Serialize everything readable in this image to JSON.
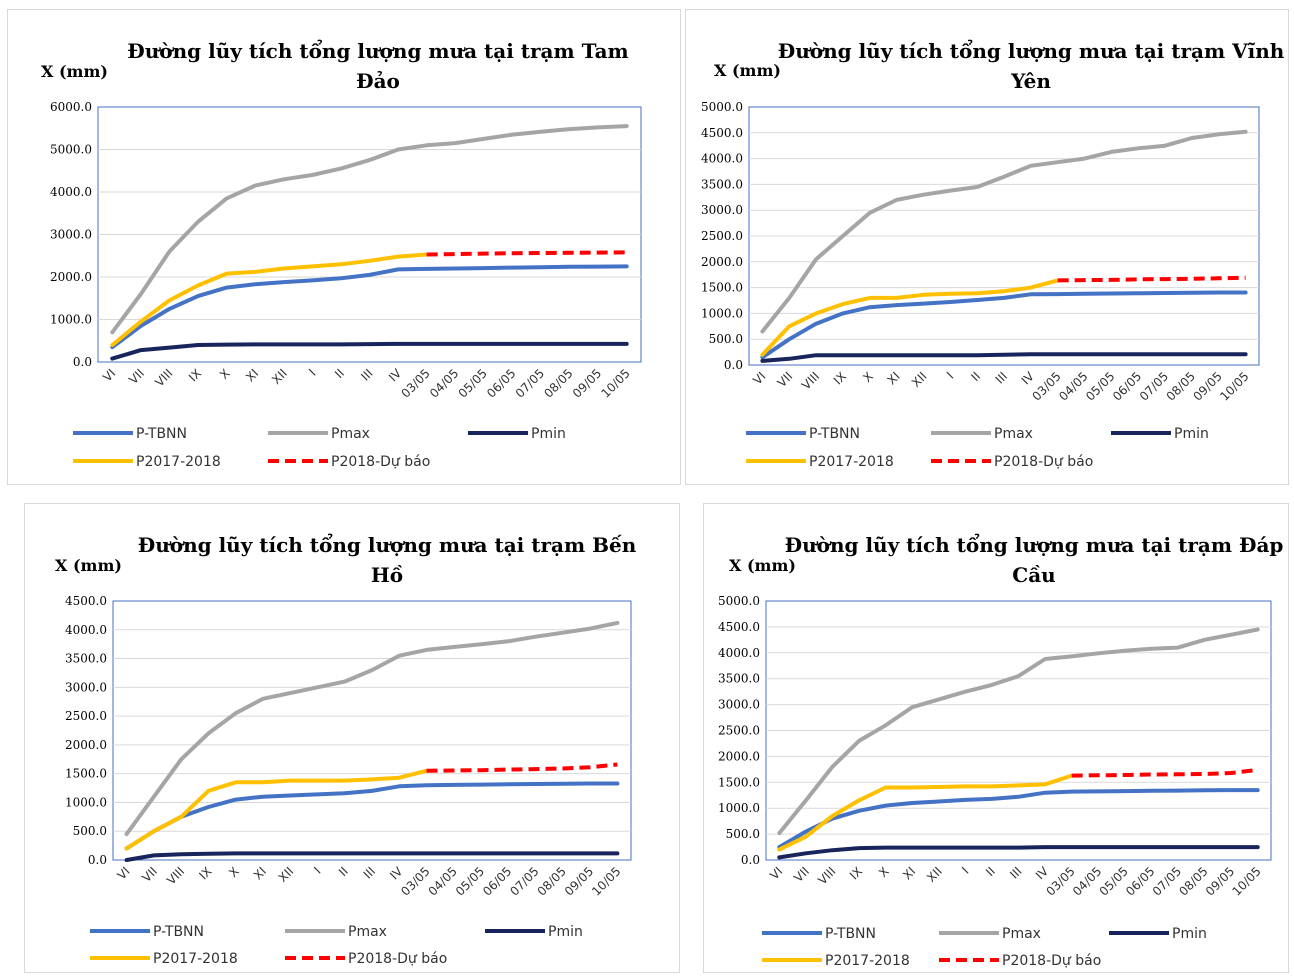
{
  "series_styles": {
    "P-TBNN": "#4472c4",
    "Pmax": "#a5a5a5",
    "Pmin": "#17255c",
    "P2017-2018": "#ffc000",
    "P2018-Dự báo": "#ff0000"
  },
  "chart_data": [
    {
      "type": "line",
      "title": "Đường lũy tích tổng lượng mưa tại trạm Tam Đảo",
      "title_lines": [
        "Đường lũy tích tổng lượng mưa tại trạm Tam",
        "Đảo"
      ],
      "ylabel": "X (mm)",
      "ylim": [
        0,
        6000
      ],
      "yticks": [
        "0.0",
        "1000.0",
        "2000.0",
        "3000.0",
        "4000.0",
        "5000.0",
        "6000.0"
      ],
      "categories": [
        "VI",
        "VII",
        "VIII",
        "IX",
        "X",
        "XI",
        "XII",
        "I",
        "II",
        "III",
        "IV",
        "03/05",
        "04/05",
        "05/05",
        "06/05",
        "07/05",
        "08/05",
        "09/05",
        "10/05"
      ],
      "series": [
        {
          "name": "P-TBNN",
          "x": [
            0,
            1,
            2,
            3,
            4,
            5,
            6,
            7,
            8,
            9,
            10,
            11,
            12,
            13,
            14,
            15,
            16,
            17,
            18
          ],
          "values": [
            350,
            850,
            1250,
            1550,
            1750,
            1830,
            1880,
            1920,
            1970,
            2050,
            2180,
            2190,
            2200,
            2210,
            2220,
            2230,
            2240,
            2245,
            2250
          ]
        },
        {
          "name": "Pmax",
          "x": [
            0,
            1,
            2,
            3,
            4,
            5,
            6,
            7,
            8,
            9,
            10,
            11,
            12,
            13,
            14,
            15,
            16,
            17,
            18
          ],
          "values": [
            700,
            1600,
            2600,
            3300,
            3850,
            4150,
            4300,
            4400,
            4550,
            4750,
            5000,
            5100,
            5150,
            5250,
            5350,
            5420,
            5480,
            5520,
            5550
          ]
        },
        {
          "name": "Pmin",
          "x": [
            0,
            1,
            2,
            3,
            4,
            5,
            6,
            7,
            8,
            9,
            10,
            11,
            12,
            13,
            14,
            15,
            16,
            17,
            18
          ],
          "values": [
            80,
            280,
            340,
            400,
            410,
            415,
            415,
            415,
            415,
            420,
            425,
            425,
            425,
            425,
            425,
            425,
            425,
            425,
            425
          ]
        },
        {
          "name": "P2017-2018",
          "x": [
            0,
            1,
            2,
            3,
            4,
            5,
            6,
            7,
            8,
            9,
            10,
            11
          ],
          "values": [
            400,
            950,
            1450,
            1800,
            2080,
            2120,
            2200,
            2250,
            2300,
            2380,
            2480,
            2530
          ]
        },
        {
          "name": "P2018-Dự báo",
          "dashed": true,
          "x": [
            11,
            12,
            13,
            14,
            15,
            16,
            17,
            18
          ],
          "values": [
            2530,
            2540,
            2550,
            2560,
            2565,
            2570,
            2575,
            2580
          ]
        }
      ],
      "legend": [
        "P-TBNN",
        "Pmax",
        "Pmin",
        "P2017-2018",
        "P2018-Dự báo"
      ]
    },
    {
      "type": "line",
      "title": "Đường lũy tích tổng lượng mưa tại trạm Vĩnh Yên",
      "title_lines": [
        "Đường lũy tích tổng lượng mưa tại trạm Vĩnh",
        "Yên"
      ],
      "ylabel": "X (mm)",
      "ylim": [
        0,
        5000
      ],
      "yticks": [
        "0.0",
        "500.0",
        "1000.0",
        "1500.0",
        "2000.0",
        "2500.0",
        "3000.0",
        "3500.0",
        "4000.0",
        "4500.0",
        "5000.0"
      ],
      "categories": [
        "VI",
        "VII",
        "VIII",
        "IX",
        "X",
        "XI",
        "XII",
        "I",
        "II",
        "III",
        "IV",
        "03/05",
        "04/05",
        "05/05",
        "06/05",
        "07/05",
        "08/05",
        "09/05",
        "10/05"
      ],
      "series": [
        {
          "name": "P-TBNN",
          "x": [
            0,
            1,
            2,
            3,
            4,
            5,
            6,
            7,
            8,
            9,
            10,
            11,
            12,
            13,
            14,
            15,
            16,
            17,
            18
          ],
          "values": [
            150,
            500,
            800,
            1000,
            1120,
            1160,
            1190,
            1220,
            1260,
            1300,
            1370,
            1375,
            1380,
            1385,
            1390,
            1395,
            1400,
            1405,
            1405
          ]
        },
        {
          "name": "Pmax",
          "x": [
            0,
            1,
            2,
            3,
            4,
            5,
            6,
            7,
            8,
            9,
            10,
            11,
            12,
            13,
            14,
            15,
            16,
            17,
            18
          ],
          "values": [
            650,
            1300,
            2050,
            2500,
            2950,
            3200,
            3300,
            3380,
            3450,
            3650,
            3860,
            3930,
            4000,
            4130,
            4200,
            4250,
            4400,
            4470,
            4520
          ]
        },
        {
          "name": "Pmin",
          "x": [
            0,
            1,
            2,
            3,
            4,
            5,
            6,
            7,
            8,
            9,
            10,
            11,
            12,
            13,
            14,
            15,
            16,
            17,
            18
          ],
          "values": [
            80,
            120,
            190,
            190,
            190,
            190,
            190,
            190,
            190,
            200,
            210,
            210,
            210,
            210,
            210,
            210,
            210,
            210,
            210
          ]
        },
        {
          "name": "P2017-2018",
          "x": [
            0,
            1,
            2,
            3,
            4,
            5,
            6,
            7,
            8,
            9,
            10,
            11
          ],
          "values": [
            200,
            750,
            1000,
            1180,
            1300,
            1300,
            1360,
            1380,
            1390,
            1430,
            1500,
            1640
          ]
        },
        {
          "name": "P2018-Dự báo",
          "dashed": true,
          "x": [
            11,
            12,
            13,
            14,
            15,
            16,
            17,
            18
          ],
          "values": [
            1640,
            1645,
            1650,
            1660,
            1665,
            1670,
            1680,
            1690
          ]
        }
      ],
      "legend": [
        "P-TBNN",
        "Pmax",
        "Pmin",
        "P2017-2018",
        "P2018-Dự báo"
      ]
    },
    {
      "type": "line",
      "title": "Đường lũy tích tổng lượng mưa tại trạm Bến Hồ",
      "title_lines": [
        "Đường lũy tích tổng lượng mưa tại trạm Bến",
        "Hồ"
      ],
      "ylabel": "X (mm)",
      "ylim": [
        0,
        4500
      ],
      "yticks": [
        "0.0",
        "500.0",
        "1000.0",
        "1500.0",
        "2000.0",
        "2500.0",
        "3000.0",
        "3500.0",
        "4000.0",
        "4500.0"
      ],
      "categories": [
        "VI",
        "VII",
        "VIII",
        "IX",
        "X",
        "XI",
        "XII",
        "I",
        "II",
        "III",
        "IV",
        "03/05",
        "04/05",
        "05/05",
        "06/05",
        "07/05",
        "08/05",
        "09/05",
        "10/05"
      ],
      "series": [
        {
          "name": "P-TBNN",
          "x": [
            0,
            1,
            2,
            3,
            4,
            5,
            6,
            7,
            8,
            9,
            10,
            11,
            12,
            13,
            14,
            15,
            16,
            17,
            18
          ],
          "values": [
            200,
            500,
            750,
            920,
            1050,
            1100,
            1120,
            1140,
            1160,
            1200,
            1280,
            1300,
            1305,
            1310,
            1315,
            1320,
            1325,
            1330,
            1330
          ]
        },
        {
          "name": "Pmax",
          "x": [
            0,
            1,
            2,
            3,
            4,
            5,
            6,
            7,
            8,
            9,
            10,
            11,
            12,
            13,
            14,
            15,
            16,
            17,
            18
          ],
          "values": [
            450,
            1100,
            1750,
            2200,
            2550,
            2800,
            2900,
            3000,
            3100,
            3300,
            3550,
            3650,
            3700,
            3750,
            3800,
            3880,
            3950,
            4020,
            4120
          ]
        },
        {
          "name": "Pmin",
          "x": [
            0,
            1,
            2,
            3,
            4,
            5,
            6,
            7,
            8,
            9,
            10,
            11,
            12,
            13,
            14,
            15,
            16,
            17,
            18
          ],
          "values": [
            0,
            80,
            100,
            110,
            115,
            115,
            115,
            115,
            115,
            115,
            115,
            115,
            115,
            115,
            115,
            115,
            115,
            115,
            115
          ]
        },
        {
          "name": "P2017-2018",
          "x": [
            0,
            1,
            2,
            3,
            4,
            5,
            6,
            7,
            8,
            9,
            10,
            11
          ],
          "values": [
            200,
            500,
            750,
            1200,
            1350,
            1350,
            1380,
            1380,
            1380,
            1400,
            1430,
            1550
          ]
        },
        {
          "name": "P2018-Dự báo",
          "dashed": true,
          "x": [
            11,
            12,
            13,
            14,
            15,
            16,
            17,
            18
          ],
          "values": [
            1550,
            1555,
            1560,
            1570,
            1580,
            1590,
            1610,
            1660
          ]
        }
      ],
      "legend": [
        "P-TBNN",
        "Pmax",
        "Pmin",
        "P2017-2018",
        "P2018-Dự báo"
      ]
    },
    {
      "type": "line",
      "title": "Đường lũy tích tổng lượng mưa tại trạm Đáp Cầu",
      "title_lines": [
        "Đường lũy tích tổng lượng mưa tại trạm Đáp",
        "Cầu"
      ],
      "ylabel": "X (mm)",
      "ylim": [
        0,
        5000
      ],
      "yticks": [
        "0.0",
        "500.0",
        "1000.0",
        "1500.0",
        "2000.0",
        "2500.0",
        "3000.0",
        "3500.0",
        "4000.0",
        "4500.0",
        "5000.0"
      ],
      "categories": [
        "VI",
        "VII",
        "VIII",
        "IX",
        "X",
        "XI",
        "XII",
        "I",
        "II",
        "III",
        "IV",
        "03/05",
        "04/05",
        "05/05",
        "06/05",
        "07/05",
        "08/05",
        "09/05",
        "10/05"
      ],
      "series": [
        {
          "name": "P-TBNN",
          "x": [
            0,
            1,
            2,
            3,
            4,
            5,
            6,
            7,
            8,
            9,
            10,
            11,
            12,
            13,
            14,
            15,
            16,
            17,
            18
          ],
          "values": [
            250,
            550,
            800,
            950,
            1050,
            1100,
            1130,
            1160,
            1180,
            1220,
            1300,
            1320,
            1325,
            1330,
            1335,
            1340,
            1345,
            1350,
            1350
          ]
        },
        {
          "name": "Pmax",
          "x": [
            0,
            1,
            2,
            3,
            4,
            5,
            6,
            7,
            8,
            9,
            10,
            11,
            12,
            13,
            14,
            15,
            16,
            17,
            18
          ],
          "values": [
            520,
            1150,
            1800,
            2300,
            2600,
            2950,
            3100,
            3250,
            3380,
            3550,
            3880,
            3930,
            3990,
            4040,
            4080,
            4100,
            4250,
            4350,
            4450
          ]
        },
        {
          "name": "Pmin",
          "x": [
            0,
            1,
            2,
            3,
            4,
            5,
            6,
            7,
            8,
            9,
            10,
            11,
            12,
            13,
            14,
            15,
            16,
            17,
            18
          ],
          "values": [
            50,
            130,
            190,
            230,
            240,
            240,
            240,
            240,
            240,
            240,
            250,
            250,
            250,
            250,
            250,
            250,
            250,
            250,
            250
          ]
        },
        {
          "name": "P2017-2018",
          "x": [
            0,
            1,
            2,
            3,
            4,
            5,
            6,
            7,
            8,
            9,
            10,
            11
          ],
          "values": [
            200,
            450,
            850,
            1150,
            1400,
            1400,
            1410,
            1420,
            1420,
            1440,
            1460,
            1630
          ]
        },
        {
          "name": "P2018-Dự báo",
          "dashed": true,
          "x": [
            11,
            12,
            13,
            14,
            15,
            16,
            17,
            18
          ],
          "values": [
            1630,
            1635,
            1640,
            1650,
            1655,
            1660,
            1680,
            1740
          ]
        }
      ],
      "legend": [
        "P-TBNN",
        "Pmax",
        "Pmin",
        "P2017-2018",
        "P2018-Dự báo"
      ]
    }
  ]
}
